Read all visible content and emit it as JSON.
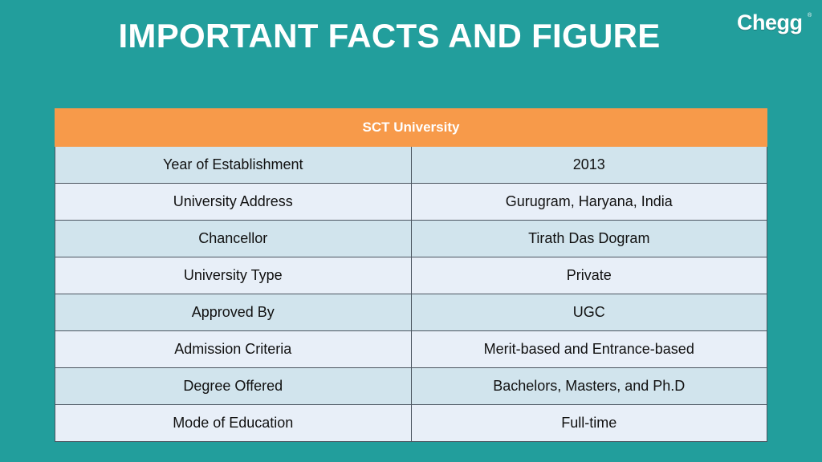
{
  "slide": {
    "title": "IMPORTANT FACTS AND FIGURE"
  },
  "logo": {
    "text": "Chegg",
    "mark": "®"
  },
  "colors": {
    "background": "#229e9c",
    "header": "#f79a4a",
    "row_alt_1": "#d1e4ed",
    "row_alt_2": "#e8eff8"
  },
  "table": {
    "header": "SCT University",
    "rows": [
      {
        "label": "Year of Establishment",
        "value": "2013"
      },
      {
        "label": "University Address",
        "value": "Gurugram, Haryana, India"
      },
      {
        "label": "Chancellor",
        "value": "Tirath Das Dogram"
      },
      {
        "label": "University Type",
        "value": "Private"
      },
      {
        "label": "Approved By",
        "value": "UGC"
      },
      {
        "label": "Admission Criteria",
        "value": "Merit-based and Entrance-based"
      },
      {
        "label": "Degree Offered",
        "value": "Bachelors, Masters, and Ph.D"
      },
      {
        "label": "Mode of Education",
        "value": "Full-time"
      }
    ]
  }
}
